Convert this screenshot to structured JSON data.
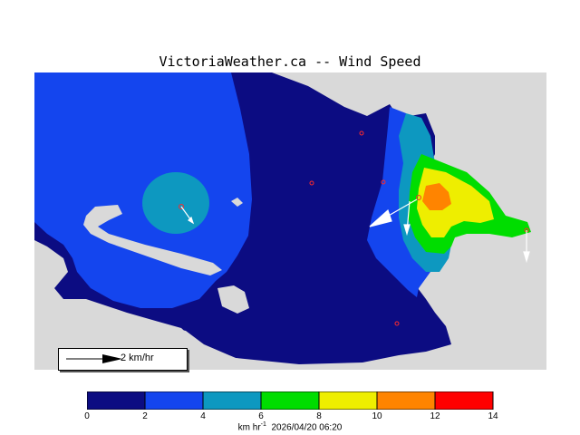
{
  "title": "VictoriaWeather.ca -- Wind Speed",
  "colors": {
    "land": "#d9d9d9",
    "water_and_low": "#0c0c82",
    "band_2_4": "#1445ee",
    "band_4_6": "#0d98c0",
    "band_6_8": "#00dd00",
    "band_8_10": "#eeee00",
    "band_10_12": "#ff8400",
    "band_12_14": "#ff0000"
  },
  "colorbar": {
    "ticks": [
      "0",
      "2",
      "4",
      "6",
      "8",
      "10",
      "12",
      "14"
    ],
    "units_text": "km hr",
    "units_exponent": "-1",
    "timestamp": "2026/04/20 06:20"
  },
  "legend": {
    "reference_label": "2 km/hr"
  }
}
